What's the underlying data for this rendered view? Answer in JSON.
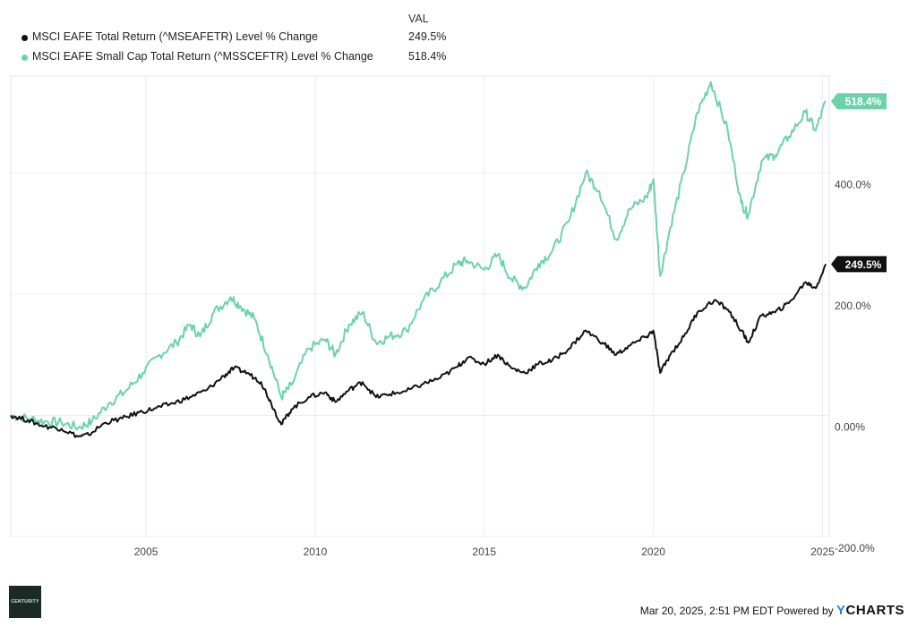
{
  "legend": {
    "header": "VAL",
    "items": [
      {
        "label": "MSCI EAFE Total Return (^MSEAFETR) Level % Change",
        "value": "249.5%",
        "color": "#111111"
      },
      {
        "label": "MSCI EAFE Small Cap Total Return (^MSSCEFTR) Level % Change",
        "value": "518.4%",
        "color": "#6cd3a9"
      }
    ]
  },
  "footer": {
    "timestamp": "Mar 20, 2025, 2:51 PM EDT",
    "powered_by": "Powered by",
    "brand_y": "Y",
    "brand_rest": "CHARTS"
  },
  "logo_text": "CENTURITY",
  "chart_data": {
    "type": "line",
    "title": "",
    "xlabel": "",
    "ylabel": "",
    "xlim": [
      2001.0,
      2025.2
    ],
    "ylim": [
      -200,
      560
    ],
    "x_ticks": [
      2005,
      2010,
      2015,
      2020,
      2025
    ],
    "x_tick_labels": [
      "2005",
      "2010",
      "2015",
      "2020",
      "2025"
    ],
    "y_ticks": [
      -200,
      0,
      200,
      400
    ],
    "y_tick_labels": [
      "-200.0%",
      "0.00%",
      "200.0%",
      "400.0%"
    ],
    "grid": true,
    "series": [
      {
        "name": "MSCI EAFE Total Return (^MSEAFETR) Level % Change",
        "color": "#111111",
        "end_label": "249.5%",
        "points": [
          [
            2001.0,
            0
          ],
          [
            2001.5,
            -8
          ],
          [
            2002.0,
            -18
          ],
          [
            2002.5,
            -22
          ],
          [
            2003.0,
            -35
          ],
          [
            2003.3,
            -32
          ],
          [
            2003.8,
            -12
          ],
          [
            2004.3,
            -5
          ],
          [
            2004.8,
            5
          ],
          [
            2005.3,
            12
          ],
          [
            2005.8,
            20
          ],
          [
            2006.3,
            30
          ],
          [
            2006.8,
            42
          ],
          [
            2007.3,
            65
          ],
          [
            2007.6,
            78
          ],
          [
            2008.0,
            70
          ],
          [
            2008.4,
            55
          ],
          [
            2008.7,
            20
          ],
          [
            2009.0,
            -15
          ],
          [
            2009.3,
            10
          ],
          [
            2009.8,
            30
          ],
          [
            2010.3,
            38
          ],
          [
            2010.6,
            22
          ],
          [
            2011.0,
            42
          ],
          [
            2011.4,
            55
          ],
          [
            2011.8,
            30
          ],
          [
            2012.2,
            35
          ],
          [
            2012.7,
            40
          ],
          [
            2013.2,
            52
          ],
          [
            2013.7,
            62
          ],
          [
            2014.2,
            80
          ],
          [
            2014.5,
            95
          ],
          [
            2015.0,
            85
          ],
          [
            2015.4,
            100
          ],
          [
            2015.8,
            78
          ],
          [
            2016.2,
            70
          ],
          [
            2016.6,
            85
          ],
          [
            2017.0,
            90
          ],
          [
            2017.5,
            110
          ],
          [
            2018.0,
            140
          ],
          [
            2018.5,
            120
          ],
          [
            2018.9,
            100
          ],
          [
            2019.3,
            115
          ],
          [
            2019.8,
            130
          ],
          [
            2020.0,
            140
          ],
          [
            2020.2,
            70
          ],
          [
            2020.5,
            100
          ],
          [
            2020.9,
            130
          ],
          [
            2021.3,
            170
          ],
          [
            2021.8,
            190
          ],
          [
            2022.2,
            175
          ],
          [
            2022.6,
            140
          ],
          [
            2022.8,
            120
          ],
          [
            2023.2,
            165
          ],
          [
            2023.6,
            170
          ],
          [
            2024.0,
            185
          ],
          [
            2024.5,
            220
          ],
          [
            2024.8,
            210
          ],
          [
            2025.1,
            249.5
          ]
        ]
      },
      {
        "name": "MSCI EAFE Small Cap Total Return (^MSSCEFTR) Level % Change",
        "color": "#6cd3a9",
        "end_label": "518.4%",
        "points": [
          [
            2001.0,
            0
          ],
          [
            2001.5,
            -5
          ],
          [
            2002.0,
            -10
          ],
          [
            2002.5,
            -12
          ],
          [
            2003.0,
            -20
          ],
          [
            2003.4,
            -10
          ],
          [
            2003.9,
            20
          ],
          [
            2004.4,
            40
          ],
          [
            2004.9,
            70
          ],
          [
            2005.4,
            100
          ],
          [
            2005.9,
            120
          ],
          [
            2006.3,
            150
          ],
          [
            2006.6,
            130
          ],
          [
            2007.0,
            170
          ],
          [
            2007.5,
            195
          ],
          [
            2007.8,
            180
          ],
          [
            2008.2,
            160
          ],
          [
            2008.6,
            100
          ],
          [
            2009.0,
            30
          ],
          [
            2009.3,
            50
          ],
          [
            2009.8,
            110
          ],
          [
            2010.3,
            125
          ],
          [
            2010.6,
            100
          ],
          [
            2011.0,
            150
          ],
          [
            2011.4,
            170
          ],
          [
            2011.8,
            120
          ],
          [
            2012.2,
            130
          ],
          [
            2012.7,
            140
          ],
          [
            2013.2,
            190
          ],
          [
            2013.7,
            220
          ],
          [
            2014.2,
            250
          ],
          [
            2014.5,
            255
          ],
          [
            2015.0,
            240
          ],
          [
            2015.4,
            265
          ],
          [
            2015.8,
            225
          ],
          [
            2016.2,
            210
          ],
          [
            2016.6,
            250
          ],
          [
            2017.0,
            270
          ],
          [
            2017.5,
            320
          ],
          [
            2018.0,
            400
          ],
          [
            2018.4,
            370
          ],
          [
            2018.9,
            290
          ],
          [
            2019.3,
            340
          ],
          [
            2019.8,
            360
          ],
          [
            2020.0,
            390
          ],
          [
            2020.2,
            230
          ],
          [
            2020.5,
            310
          ],
          [
            2020.9,
            400
          ],
          [
            2021.3,
            500
          ],
          [
            2021.7,
            550
          ],
          [
            2022.2,
            470
          ],
          [
            2022.6,
            350
          ],
          [
            2022.8,
            330
          ],
          [
            2023.2,
            420
          ],
          [
            2023.6,
            430
          ],
          [
            2024.0,
            460
          ],
          [
            2024.5,
            500
          ],
          [
            2024.8,
            470
          ],
          [
            2025.1,
            518.4
          ]
        ]
      }
    ]
  }
}
